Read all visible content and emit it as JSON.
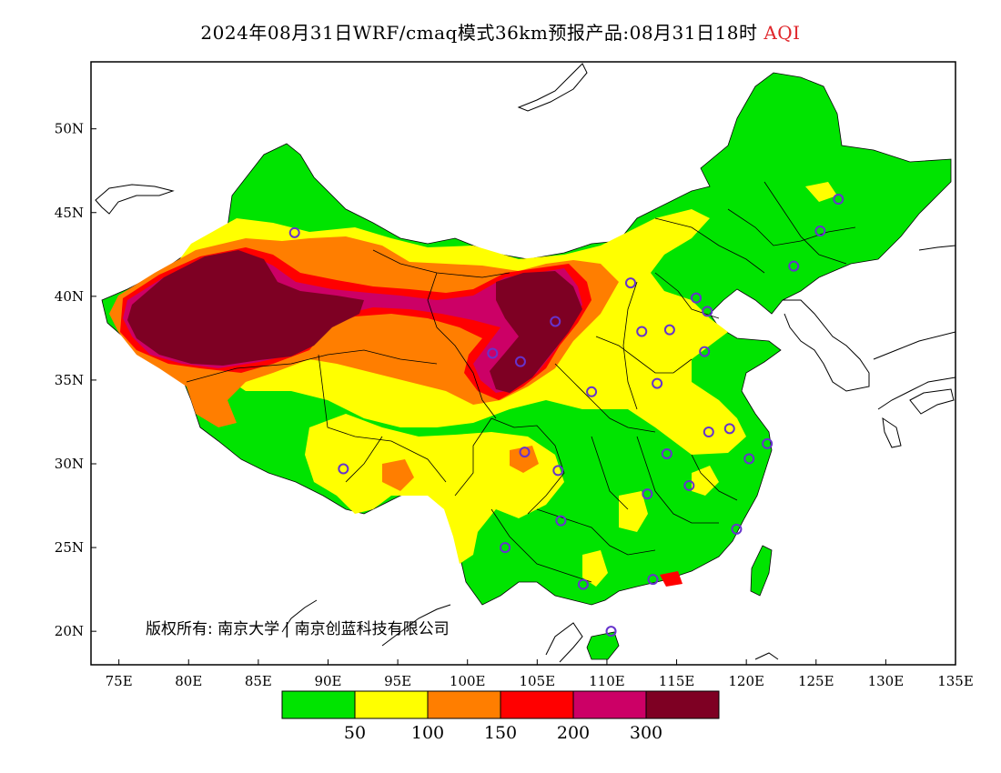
{
  "title": {
    "prefix": "2024年08月31日WRF/cmaq模式36km预报产品:08月31日18时",
    "variable": "AQI"
  },
  "map": {
    "lon_range": [
      73,
      135
    ],
    "lat_range": [
      18,
      54
    ],
    "lon_ticks": [
      "75E",
      "80E",
      "85E",
      "90E",
      "95E",
      "100E",
      "105E",
      "110E",
      "115E",
      "120E",
      "125E",
      "130E",
      "135E"
    ],
    "lat_ticks": [
      "20N",
      "25N",
      "30N",
      "35N",
      "40N",
      "45N",
      "50N"
    ],
    "copyright": "版权所有: 南京大学 | 南京创蓝科技有限公司"
  },
  "colorscale": {
    "colors": [
      "#00e400",
      "#ffff00",
      "#ff7e00",
      "#ff0000",
      "#cc0066",
      "#7e0023"
    ],
    "breaks": [
      "50",
      "100",
      "150",
      "200",
      "300"
    ]
  },
  "stations": [
    {
      "lon": 87.6,
      "lat": 43.8
    },
    {
      "lon": 91.1,
      "lat": 29.7
    },
    {
      "lon": 101.8,
      "lat": 36.6
    },
    {
      "lon": 103.8,
      "lat": 36.1
    },
    {
      "lon": 106.3,
      "lat": 38.5
    },
    {
      "lon": 111.7,
      "lat": 40.8
    },
    {
      "lon": 112.5,
      "lat": 37.9
    },
    {
      "lon": 114.5,
      "lat": 38.0
    },
    {
      "lon": 116.4,
      "lat": 39.9
    },
    {
      "lon": 117.2,
      "lat": 39.1
    },
    {
      "lon": 117.0,
      "lat": 36.7
    },
    {
      "lon": 113.6,
      "lat": 34.8
    },
    {
      "lon": 108.9,
      "lat": 34.3
    },
    {
      "lon": 104.1,
      "lat": 30.7
    },
    {
      "lon": 106.5,
      "lat": 29.6
    },
    {
      "lon": 106.7,
      "lat": 26.6
    },
    {
      "lon": 102.7,
      "lat": 25.0
    },
    {
      "lon": 108.3,
      "lat": 22.8
    },
    {
      "lon": 113.3,
      "lat": 23.1
    },
    {
      "lon": 110.3,
      "lat": 20.0
    },
    {
      "lon": 112.9,
      "lat": 28.2
    },
    {
      "lon": 115.9,
      "lat": 28.7
    },
    {
      "lon": 114.3,
      "lat": 30.6
    },
    {
      "lon": 117.3,
      "lat": 31.9
    },
    {
      "lon": 118.8,
      "lat": 32.1
    },
    {
      "lon": 120.2,
      "lat": 30.3
    },
    {
      "lon": 121.5,
      "lat": 31.2
    },
    {
      "lon": 119.3,
      "lat": 26.1
    },
    {
      "lon": 123.4,
      "lat": 41.8
    },
    {
      "lon": 125.3,
      "lat": 43.9
    },
    {
      "lon": 126.6,
      "lat": 45.8
    }
  ]
}
